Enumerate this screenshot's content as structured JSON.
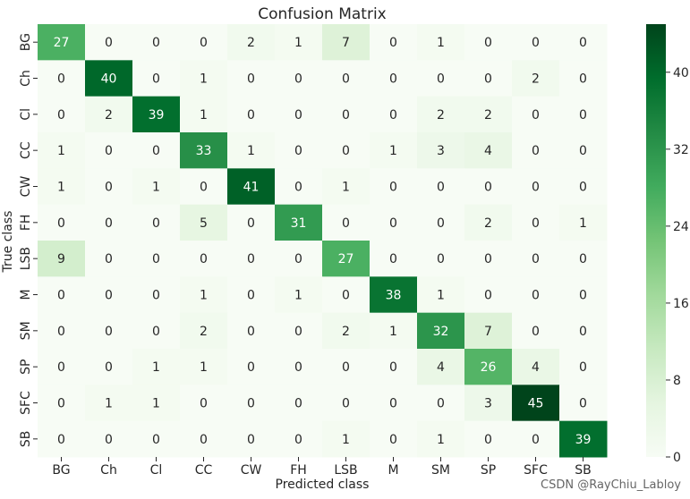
{
  "chart_data": {
    "type": "heatmap",
    "title": "Confusion Matrix",
    "xlabel": "Predicted class",
    "ylabel": "True class",
    "x_categories": [
      "BG",
      "Ch",
      "Cl",
      "CC",
      "CW",
      "FH",
      "LSB",
      "M",
      "SM",
      "SP",
      "SFC",
      "SB"
    ],
    "y_categories": [
      "BG",
      "Ch",
      "Cl",
      "CC",
      "CW",
      "FH",
      "LSB",
      "M",
      "SM",
      "SP",
      "SFC",
      "SB"
    ],
    "values": [
      [
        27,
        0,
        0,
        0,
        2,
        1,
        7,
        0,
        1,
        0,
        0,
        0
      ],
      [
        0,
        40,
        0,
        1,
        0,
        0,
        0,
        0,
        0,
        0,
        2,
        0
      ],
      [
        0,
        2,
        39,
        1,
        0,
        0,
        0,
        0,
        2,
        2,
        0,
        0
      ],
      [
        1,
        0,
        0,
        33,
        1,
        0,
        0,
        1,
        3,
        4,
        0,
        0
      ],
      [
        1,
        0,
        1,
        0,
        41,
        0,
        1,
        0,
        0,
        0,
        0,
        0
      ],
      [
        0,
        0,
        0,
        5,
        0,
        31,
        0,
        0,
        0,
        2,
        0,
        1
      ],
      [
        9,
        0,
        0,
        0,
        0,
        0,
        27,
        0,
        0,
        0,
        0,
        0
      ],
      [
        0,
        0,
        0,
        1,
        0,
        1,
        0,
        38,
        1,
        0,
        0,
        0
      ],
      [
        0,
        0,
        0,
        2,
        0,
        0,
        2,
        1,
        32,
        7,
        0,
        0
      ],
      [
        0,
        0,
        1,
        1,
        0,
        0,
        0,
        0,
        4,
        26,
        4,
        0
      ],
      [
        0,
        1,
        1,
        0,
        0,
        0,
        0,
        0,
        0,
        3,
        45,
        0
      ],
      [
        0,
        0,
        0,
        0,
        0,
        0,
        1,
        0,
        1,
        0,
        0,
        39
      ]
    ],
    "colorbar": {
      "min": 0,
      "max": 45,
      "ticks": [
        0,
        8,
        16,
        24,
        32,
        40
      ],
      "color_low": "#f7fcf5",
      "color_high": "#00441b"
    }
  },
  "watermark": "CSDN @RayChiu_Labloy"
}
